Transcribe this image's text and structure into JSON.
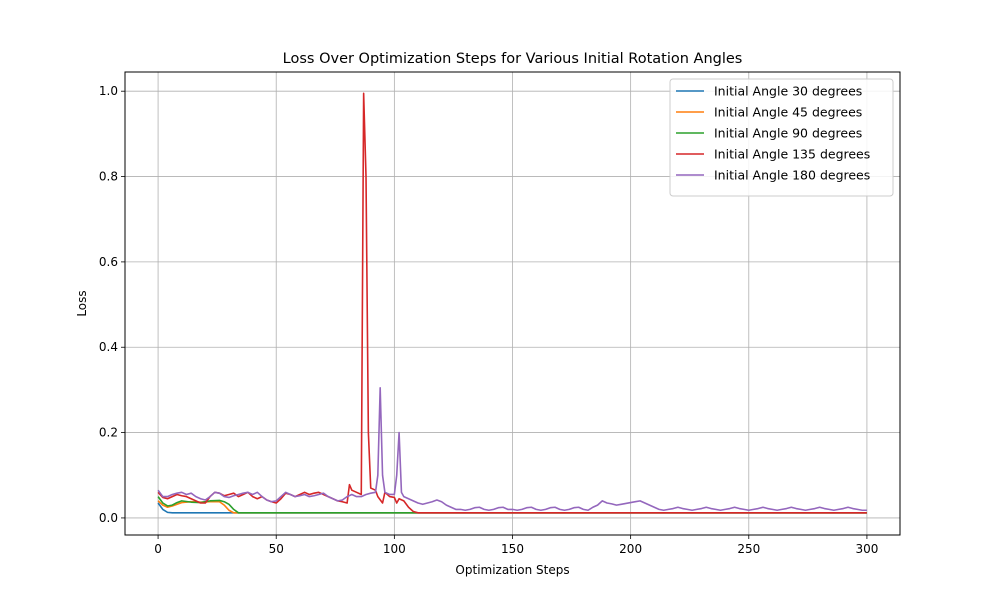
{
  "chart_data": {
    "type": "line",
    "title": "Loss Over Optimization Steps for Various Initial Rotation Angles",
    "xlabel": "Optimization Steps",
    "ylabel": "Loss",
    "xlim": [
      -14,
      314
    ],
    "ylim": [
      -0.04,
      1.045
    ],
    "xticks": [
      0,
      50,
      100,
      150,
      200,
      250,
      300
    ],
    "yticks": [
      0.0,
      0.2,
      0.4,
      0.6,
      0.8,
      1.0
    ],
    "grid": true,
    "legend_position": "top-right",
    "series": [
      {
        "name": "Initial Angle 30 degrees",
        "color": "#1f77b4",
        "points": [
          [
            0,
            0.035
          ],
          [
            2,
            0.02
          ],
          [
            4,
            0.013
          ],
          [
            6,
            0.012
          ],
          [
            300,
            0.012
          ]
        ]
      },
      {
        "name": "Initial Angle 45 degrees",
        "color": "#ff7f0e",
        "points": [
          [
            0,
            0.04
          ],
          [
            2,
            0.03
          ],
          [
            4,
            0.025
          ],
          [
            6,
            0.028
          ],
          [
            10,
            0.036
          ],
          [
            14,
            0.038
          ],
          [
            18,
            0.037
          ],
          [
            22,
            0.038
          ],
          [
            26,
            0.038
          ],
          [
            28,
            0.03
          ],
          [
            30,
            0.018
          ],
          [
            32,
            0.012
          ],
          [
            300,
            0.012
          ]
        ]
      },
      {
        "name": "Initial Angle 90 degrees",
        "color": "#2ca02c",
        "points": [
          [
            0,
            0.05
          ],
          [
            2,
            0.035
          ],
          [
            4,
            0.028
          ],
          [
            6,
            0.03
          ],
          [
            8,
            0.036
          ],
          [
            10,
            0.04
          ],
          [
            14,
            0.037
          ],
          [
            18,
            0.036
          ],
          [
            22,
            0.04
          ],
          [
            26,
            0.041
          ],
          [
            28,
            0.038
          ],
          [
            30,
            0.032
          ],
          [
            32,
            0.02
          ],
          [
            34,
            0.012
          ],
          [
            300,
            0.012
          ]
        ]
      },
      {
        "name": "Initial Angle 135 degrees",
        "color": "#d62728",
        "points": [
          [
            0,
            0.06
          ],
          [
            2,
            0.048
          ],
          [
            4,
            0.045
          ],
          [
            6,
            0.05
          ],
          [
            8,
            0.055
          ],
          [
            10,
            0.052
          ],
          [
            12,
            0.05
          ],
          [
            14,
            0.045
          ],
          [
            16,
            0.04
          ],
          [
            18,
            0.035
          ],
          [
            20,
            0.035
          ],
          [
            22,
            0.05
          ],
          [
            24,
            0.06
          ],
          [
            26,
            0.058
          ],
          [
            28,
            0.052
          ],
          [
            30,
            0.055
          ],
          [
            32,
            0.058
          ],
          [
            34,
            0.05
          ],
          [
            36,
            0.055
          ],
          [
            38,
            0.06
          ],
          [
            40,
            0.05
          ],
          [
            42,
            0.045
          ],
          [
            44,
            0.05
          ],
          [
            46,
            0.042
          ],
          [
            48,
            0.038
          ],
          [
            50,
            0.035
          ],
          [
            52,
            0.045
          ],
          [
            54,
            0.058
          ],
          [
            56,
            0.055
          ],
          [
            58,
            0.05
          ],
          [
            60,
            0.055
          ],
          [
            62,
            0.06
          ],
          [
            64,
            0.055
          ],
          [
            66,
            0.058
          ],
          [
            68,
            0.06
          ],
          [
            70,
            0.055
          ],
          [
            72,
            0.05
          ],
          [
            74,
            0.045
          ],
          [
            76,
            0.04
          ],
          [
            78,
            0.038
          ],
          [
            80,
            0.035
          ],
          [
            81,
            0.078
          ],
          [
            82,
            0.065
          ],
          [
            84,
            0.06
          ],
          [
            86,
            0.055
          ],
          [
            87,
            0.995
          ],
          [
            88,
            0.8
          ],
          [
            89,
            0.2
          ],
          [
            90,
            0.07
          ],
          [
            92,
            0.065
          ],
          [
            93,
            0.05
          ],
          [
            95,
            0.035
          ],
          [
            96,
            0.06
          ],
          [
            98,
            0.05
          ],
          [
            100,
            0.048
          ],
          [
            101,
            0.035
          ],
          [
            102,
            0.045
          ],
          [
            104,
            0.04
          ],
          [
            106,
            0.025
          ],
          [
            108,
            0.015
          ],
          [
            110,
            0.012
          ],
          [
            300,
            0.012
          ]
        ]
      },
      {
        "name": "Initial Angle 180 degrees",
        "color": "#9467bd",
        "points": [
          [
            0,
            0.065
          ],
          [
            2,
            0.05
          ],
          [
            4,
            0.05
          ],
          [
            6,
            0.055
          ],
          [
            8,
            0.058
          ],
          [
            10,
            0.06
          ],
          [
            12,
            0.055
          ],
          [
            14,
            0.058
          ],
          [
            16,
            0.05
          ],
          [
            18,
            0.045
          ],
          [
            20,
            0.042
          ],
          [
            22,
            0.05
          ],
          [
            24,
            0.06
          ],
          [
            26,
            0.058
          ],
          [
            28,
            0.05
          ],
          [
            30,
            0.048
          ],
          [
            32,
            0.052
          ],
          [
            34,
            0.055
          ],
          [
            36,
            0.058
          ],
          [
            38,
            0.06
          ],
          [
            40,
            0.055
          ],
          [
            42,
            0.06
          ],
          [
            44,
            0.05
          ],
          [
            46,
            0.042
          ],
          [
            48,
            0.038
          ],
          [
            50,
            0.04
          ],
          [
            52,
            0.05
          ],
          [
            54,
            0.06
          ],
          [
            56,
            0.055
          ],
          [
            58,
            0.05
          ],
          [
            60,
            0.052
          ],
          [
            62,
            0.055
          ],
          [
            64,
            0.05
          ],
          [
            66,
            0.052
          ],
          [
            68,
            0.055
          ],
          [
            70,
            0.058
          ],
          [
            72,
            0.05
          ],
          [
            74,
            0.045
          ],
          [
            76,
            0.04
          ],
          [
            78,
            0.042
          ],
          [
            80,
            0.05
          ],
          [
            82,
            0.055
          ],
          [
            84,
            0.05
          ],
          [
            86,
            0.05
          ],
          [
            88,
            0.055
          ],
          [
            90,
            0.058
          ],
          [
            92,
            0.06
          ],
          [
            93,
            0.1
          ],
          [
            94,
            0.305
          ],
          [
            95,
            0.1
          ],
          [
            96,
            0.06
          ],
          [
            98,
            0.055
          ],
          [
            100,
            0.055
          ],
          [
            101,
            0.1
          ],
          [
            102,
            0.2
          ],
          [
            103,
            0.06
          ],
          [
            104,
            0.05
          ],
          [
            106,
            0.045
          ],
          [
            108,
            0.04
          ],
          [
            110,
            0.035
          ],
          [
            112,
            0.032
          ],
          [
            114,
            0.035
          ],
          [
            116,
            0.038
          ],
          [
            118,
            0.042
          ],
          [
            120,
            0.038
          ],
          [
            122,
            0.03
          ],
          [
            124,
            0.025
          ],
          [
            126,
            0.02
          ],
          [
            128,
            0.02
          ],
          [
            130,
            0.018
          ],
          [
            132,
            0.02
          ],
          [
            134,
            0.024
          ],
          [
            136,
            0.025
          ],
          [
            138,
            0.02
          ],
          [
            140,
            0.018
          ],
          [
            142,
            0.02
          ],
          [
            144,
            0.024
          ],
          [
            146,
            0.025
          ],
          [
            148,
            0.02
          ],
          [
            150,
            0.02
          ],
          [
            152,
            0.018
          ],
          [
            154,
            0.02
          ],
          [
            156,
            0.024
          ],
          [
            158,
            0.025
          ],
          [
            160,
            0.02
          ],
          [
            162,
            0.018
          ],
          [
            164,
            0.02
          ],
          [
            166,
            0.024
          ],
          [
            168,
            0.025
          ],
          [
            170,
            0.02
          ],
          [
            172,
            0.018
          ],
          [
            174,
            0.02
          ],
          [
            176,
            0.024
          ],
          [
            178,
            0.025
          ],
          [
            180,
            0.02
          ],
          [
            182,
            0.018
          ],
          [
            184,
            0.025
          ],
          [
            186,
            0.03
          ],
          [
            188,
            0.04
          ],
          [
            190,
            0.035
          ],
          [
            192,
            0.033
          ],
          [
            194,
            0.03
          ],
          [
            196,
            0.032
          ],
          [
            198,
            0.034
          ],
          [
            200,
            0.036
          ],
          [
            202,
            0.038
          ],
          [
            204,
            0.04
          ],
          [
            206,
            0.035
          ],
          [
            208,
            0.03
          ],
          [
            210,
            0.025
          ],
          [
            212,
            0.02
          ],
          [
            214,
            0.018
          ],
          [
            216,
            0.02
          ],
          [
            218,
            0.022
          ],
          [
            220,
            0.025
          ],
          [
            222,
            0.022
          ],
          [
            224,
            0.02
          ],
          [
            226,
            0.018
          ],
          [
            228,
            0.02
          ],
          [
            230,
            0.022
          ],
          [
            232,
            0.025
          ],
          [
            234,
            0.022
          ],
          [
            236,
            0.02
          ],
          [
            238,
            0.018
          ],
          [
            240,
            0.02
          ],
          [
            242,
            0.022
          ],
          [
            244,
            0.025
          ],
          [
            246,
            0.022
          ],
          [
            248,
            0.02
          ],
          [
            250,
            0.018
          ],
          [
            252,
            0.02
          ],
          [
            254,
            0.022
          ],
          [
            256,
            0.025
          ],
          [
            258,
            0.022
          ],
          [
            260,
            0.02
          ],
          [
            262,
            0.018
          ],
          [
            264,
            0.02
          ],
          [
            266,
            0.022
          ],
          [
            268,
            0.025
          ],
          [
            270,
            0.022
          ],
          [
            272,
            0.02
          ],
          [
            274,
            0.018
          ],
          [
            276,
            0.02
          ],
          [
            278,
            0.022
          ],
          [
            280,
            0.025
          ],
          [
            282,
            0.022
          ],
          [
            284,
            0.02
          ],
          [
            286,
            0.018
          ],
          [
            288,
            0.02
          ],
          [
            290,
            0.022
          ],
          [
            292,
            0.025
          ],
          [
            294,
            0.022
          ],
          [
            296,
            0.02
          ],
          [
            298,
            0.018
          ],
          [
            300,
            0.018
          ]
        ]
      }
    ]
  }
}
